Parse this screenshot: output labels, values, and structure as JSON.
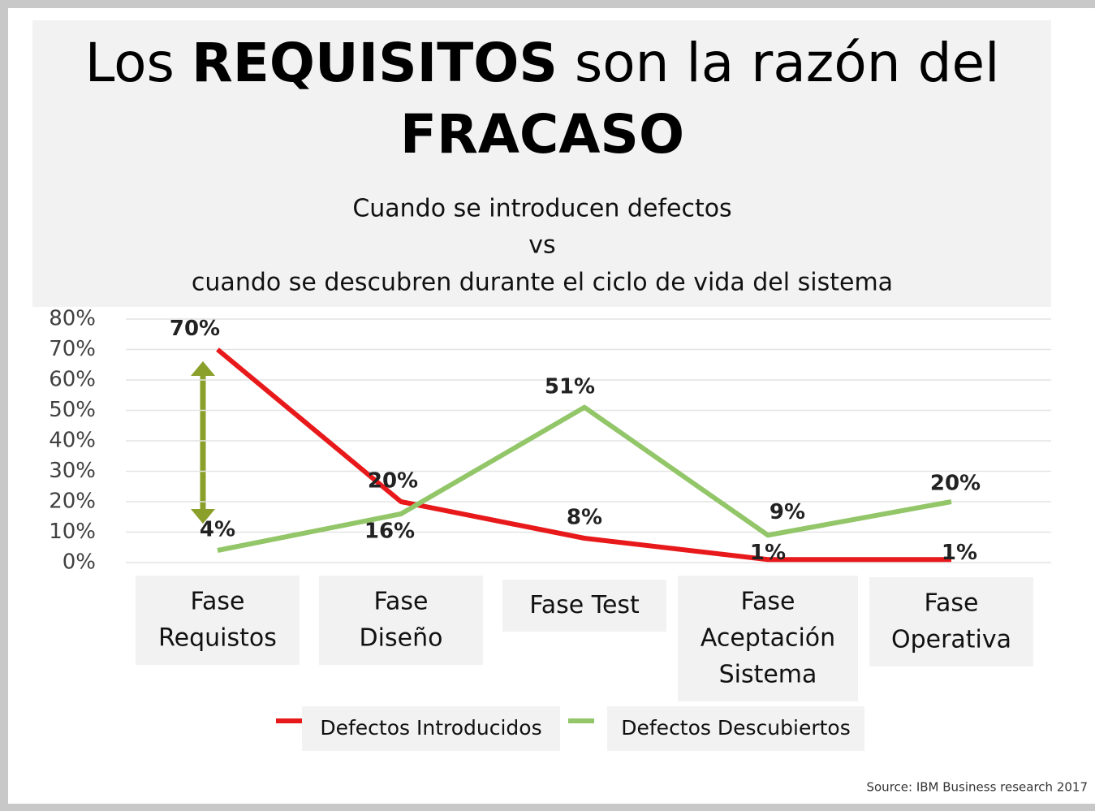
{
  "chart_data": {
    "type": "line",
    "title": [
      "Los",
      "REQUISITOS",
      "son la razón del",
      "FRACASO"
    ],
    "subtitle": [
      "Cuando se introducen defectos",
      "vs",
      "cuando se descubren durante el ciclo de vida del sistema"
    ],
    "categories": [
      "Fase\nRequistos",
      "Fase\nDiseño",
      "Fase Test",
      "Fase\nAceptación\nSistema",
      "Fase\nOperativa"
    ],
    "series": [
      {
        "name": "Defectos Introducidos",
        "color": "#e8191b",
        "values": [
          70,
          20,
          8,
          1,
          1
        ],
        "value_labels": [
          "70%",
          "20%",
          "8%",
          "1%",
          "1%"
        ]
      },
      {
        "name": "Defectos Descubiertos",
        "color": "#92c668",
        "values": [
          4,
          16,
          51,
          9,
          20
        ],
        "value_labels": [
          "4%",
          "16%",
          "51%",
          "9%",
          "20%"
        ]
      }
    ],
    "ylim": [
      0,
      80
    ],
    "yticks": [
      {
        "value": 0,
        "label": "0%"
      },
      {
        "value": 10,
        "label": "10%"
      },
      {
        "value": 20,
        "label": "20%"
      },
      {
        "value": 30,
        "label": "30%"
      },
      {
        "value": 40,
        "label": "40%"
      },
      {
        "value": 50,
        "label": "50%"
      },
      {
        "value": 60,
        "label": "60%"
      },
      {
        "value": 70,
        "label": "70%"
      },
      {
        "value": 80,
        "label": "80%"
      }
    ],
    "grid": true,
    "source": "Source: IBM Business research 2017"
  }
}
